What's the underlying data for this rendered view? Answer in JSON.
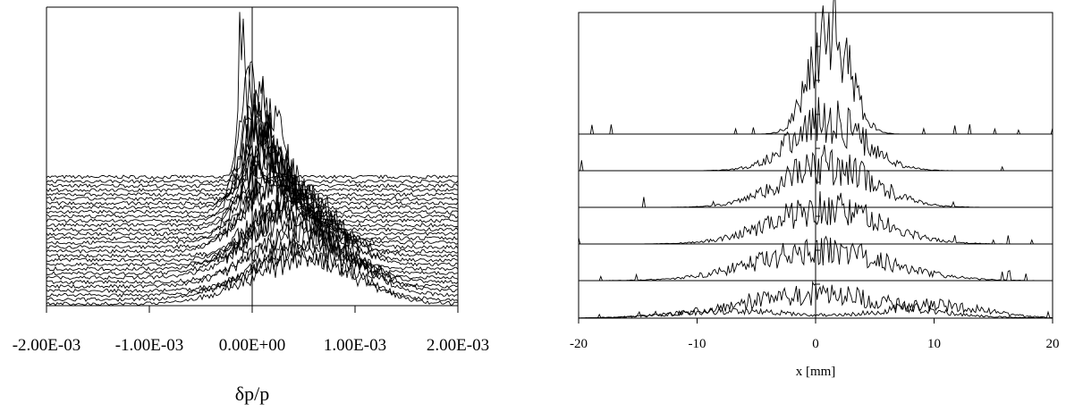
{
  "chart_data": [
    {
      "type": "line",
      "title": "",
      "xlabel": "δp/p",
      "ylabel": "",
      "xlim": [
        -0.002,
        0.002
      ],
      "x_ticks": [
        -0.002,
        -0.001,
        0.0,
        0.001,
        0.002
      ],
      "x_tick_labels": [
        "-2.00E-03",
        "-1.00E-03",
        "0.00E+00",
        "1.00E-03",
        "2.00E-03"
      ],
      "grid": false,
      "legend": "none",
      "style": "waterfall",
      "series_count": 30,
      "series_profile": {
        "center": [
          0.0,
          0.0002,
          0.0003,
          0.0004,
          0.0006
        ],
        "width": [
          3e-05,
          0.0002,
          0.00035,
          0.0005
        ],
        "note_peak_series": "first (top) series sharpest"
      },
      "line_color": "#000000"
    },
    {
      "type": "line",
      "title": "",
      "xlabel": "x [mm]",
      "ylabel": "",
      "xlim": [
        -20,
        20
      ],
      "x_ticks": [
        -20,
        -10,
        0,
        10,
        20
      ],
      "x_tick_labels": [
        "-20",
        "-10",
        "0",
        "10",
        "20"
      ],
      "grid": false,
      "legend": "none",
      "style": "waterfall",
      "series": [
        {
          "peaks": [
            {
              "mu": 1.2,
              "sigma": 1.6,
              "amp": 1.0
            }
          ]
        },
        {
          "peaks": [
            {
              "mu": 1.0,
              "sigma": 3.0,
              "amp": 0.85
            }
          ]
        },
        {
          "peaks": [
            {
              "mu": 1.0,
              "sigma": 3.8,
              "amp": 0.7
            }
          ]
        },
        {
          "peaks": [
            {
              "mu": 0.8,
              "sigma": 4.5,
              "amp": 0.6
            }
          ]
        },
        {
          "peaks": [
            {
              "mu": 0.5,
              "sigma": 5.5,
              "amp": 0.5
            }
          ]
        },
        {
          "peaks": [
            {
              "mu": 0.0,
              "sigma": 6.5,
              "amp": 0.4
            }
          ]
        },
        {
          "peaks": [
            {
              "mu": -7.0,
              "sigma": 5.0,
              "amp": 0.12
            },
            {
              "mu": 10.0,
              "sigma": 4.0,
              "amp": 0.22
            }
          ]
        }
      ],
      "line_color": "#000000"
    }
  ]
}
